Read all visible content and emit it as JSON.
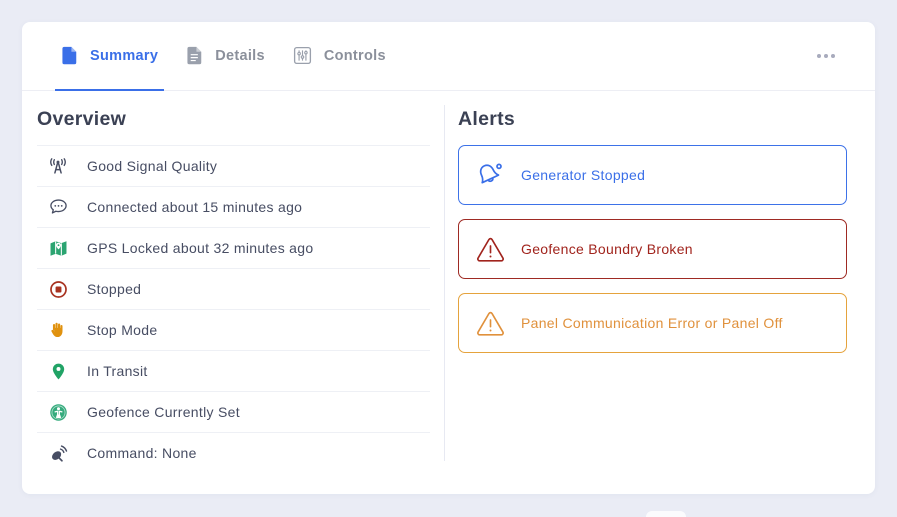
{
  "window": {
    "background": "#eaecf5",
    "card_background": "#ffffff"
  },
  "colors": {
    "accent": "#3a6fe8",
    "tab_inactive": "#8b909b",
    "heading": "#3b4154",
    "item_text": "#474d63",
    "divider": "#eef0f5"
  },
  "tabs": [
    {
      "label": "Summary",
      "icon": "document-icon",
      "active": true
    },
    {
      "label": "Details",
      "icon": "document-lines-icon",
      "active": false
    },
    {
      "label": "Controls",
      "icon": "sliders-icon",
      "active": false
    }
  ],
  "more_menu": {
    "icon": "ellipsis-icon"
  },
  "overview": {
    "title": "Overview",
    "items": [
      {
        "icon": "signal-icon",
        "label": "Good Signal Quality",
        "icon_color": "#474d63"
      },
      {
        "icon": "chat-icon",
        "label": "Connected about 15 minutes ago",
        "icon_color": "#474d63"
      },
      {
        "icon": "gps-map-icon",
        "label": "GPS Locked about 32 minutes ago",
        "icon_color": "#2ba471"
      },
      {
        "icon": "stop-icon",
        "label": "Stopped",
        "icon_color": "#a83220"
      },
      {
        "icon": "hand-icon",
        "label": "Stop Mode",
        "icon_color": "#e0920f"
      },
      {
        "icon": "location-pin-icon",
        "label": "In Transit",
        "icon_color": "#21a366"
      },
      {
        "icon": "geofence-icon",
        "label": "Geofence Currently Set",
        "icon_color": "#35ab7d"
      },
      {
        "icon": "satellite-icon",
        "label": "Command: None",
        "icon_color": "#474d63"
      }
    ]
  },
  "alerts": {
    "title": "Alerts",
    "cards": [
      {
        "icon": "bell-slash-icon",
        "label": "Generator Stopped",
        "text_color": "#3a6fe8",
        "border_color": "#3d72e8"
      },
      {
        "icon": "warning-icon",
        "label": "Geofence Boundry Broken",
        "text_color": "#a1241d",
        "border_color": "#9e2a23"
      },
      {
        "icon": "warning-icon",
        "label": "Panel Communication Error or Panel Off",
        "text_color": "#e0913c",
        "border_color": "#e5a33d"
      }
    ]
  }
}
